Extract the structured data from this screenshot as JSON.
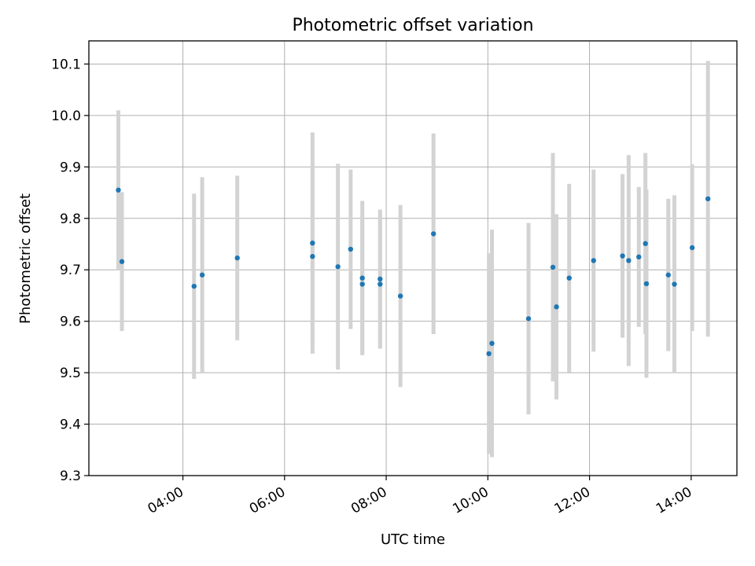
{
  "chart_data": {
    "type": "scatter",
    "title": "Photometric offset variation",
    "xlabel": "UTC time",
    "ylabel": "Photometric offset",
    "x_unit": "hours",
    "xlim": [
      2.15,
      14.9
    ],
    "ylim": [
      9.3,
      10.145
    ],
    "x_ticks": [
      {
        "value": 4,
        "label": "04:00"
      },
      {
        "value": 6,
        "label": "06:00"
      },
      {
        "value": 8,
        "label": "08:00"
      },
      {
        "value": 10,
        "label": "10:00"
      },
      {
        "value": 12,
        "label": "12:00"
      },
      {
        "value": 14,
        "label": "14:00"
      }
    ],
    "y_ticks": [
      {
        "value": 9.3,
        "label": "9.3"
      },
      {
        "value": 9.4,
        "label": "9.4"
      },
      {
        "value": 9.5,
        "label": "9.5"
      },
      {
        "value": 9.6,
        "label": "9.6"
      },
      {
        "value": 9.7,
        "label": "9.7"
      },
      {
        "value": 9.8,
        "label": "9.8"
      },
      {
        "value": 9.9,
        "label": "9.9"
      },
      {
        "value": 10.0,
        "label": "10.0"
      },
      {
        "value": 10.1,
        "label": "10.1"
      }
    ],
    "grid": true,
    "marker_color": "#1f77b4",
    "errorbar_color": "#d3d3d3",
    "points": [
      {
        "x": 2.73,
        "y": 9.855,
        "err": 0.155
      },
      {
        "x": 2.8,
        "y": 9.716,
        "err": 0.135
      },
      {
        "x": 4.22,
        "y": 9.668,
        "err": 0.18
      },
      {
        "x": 4.38,
        "y": 9.69,
        "err": 0.19
      },
      {
        "x": 5.07,
        "y": 9.723,
        "err": 0.16
      },
      {
        "x": 6.55,
        "y": 9.752,
        "err": 0.215
      },
      {
        "x": 6.55,
        "y": 9.726,
        "err": 0.17
      },
      {
        "x": 7.05,
        "y": 9.706,
        "err": 0.2
      },
      {
        "x": 7.3,
        "y": 9.74,
        "err": 0.155
      },
      {
        "x": 7.53,
        "y": 9.684,
        "err": 0.15
      },
      {
        "x": 7.53,
        "y": 9.672,
        "err": 0.135
      },
      {
        "x": 7.88,
        "y": 9.682,
        "err": 0.135
      },
      {
        "x": 7.88,
        "y": 9.672,
        "err": 0.125
      },
      {
        "x": 8.28,
        "y": 9.649,
        "err": 0.177
      },
      {
        "x": 8.93,
        "y": 9.77,
        "err": 0.195
      },
      {
        "x": 10.02,
        "y": 9.537,
        "err": 0.195
      },
      {
        "x": 10.08,
        "y": 9.557,
        "err": 0.221
      },
      {
        "x": 10.8,
        "y": 9.605,
        "err": 0.186
      },
      {
        "x": 11.28,
        "y": 9.705,
        "err": 0.222
      },
      {
        "x": 11.35,
        "y": 9.628,
        "err": 0.18
      },
      {
        "x": 11.6,
        "y": 9.684,
        "err": 0.183
      },
      {
        "x": 12.08,
        "y": 9.718,
        "err": 0.177
      },
      {
        "x": 12.65,
        "y": 9.727,
        "err": 0.159
      },
      {
        "x": 12.77,
        "y": 9.718,
        "err": 0.205
      },
      {
        "x": 12.97,
        "y": 9.725,
        "err": 0.136
      },
      {
        "x": 13.1,
        "y": 9.751,
        "err": 0.176
      },
      {
        "x": 13.12,
        "y": 9.673,
        "err": 0.183
      },
      {
        "x": 13.55,
        "y": 9.69,
        "err": 0.148
      },
      {
        "x": 13.67,
        "y": 9.672,
        "err": 0.173
      },
      {
        "x": 14.02,
        "y": 9.743,
        "err": 0.162
      },
      {
        "x": 14.33,
        "y": 9.838,
        "err": 0.268
      }
    ]
  }
}
